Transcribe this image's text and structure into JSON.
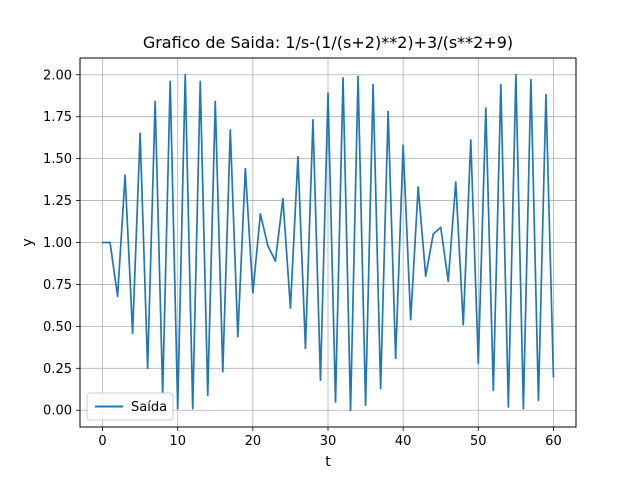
{
  "chart_data": {
    "type": "line",
    "title": "Grafico de Saida: 1/s-(1/(s+2)**2)+3/(s**2+9)",
    "xlabel": "t",
    "ylabel": "y",
    "xlim": [
      -3,
      63
    ],
    "ylim": [
      -0.1,
      2.1
    ],
    "xticks": [
      0,
      10,
      20,
      30,
      40,
      50,
      60
    ],
    "yticks": [
      0.0,
      0.25,
      0.5,
      0.75,
      1.0,
      1.25,
      1.5,
      1.75,
      2.0
    ],
    "xtick_labels": [
      "0",
      "10",
      "20",
      "30",
      "40",
      "50",
      "60"
    ],
    "ytick_labels": [
      "0.00",
      "0.25",
      "0.50",
      "0.75",
      "1.00",
      "1.25",
      "1.50",
      "1.75",
      "2.00"
    ],
    "grid": true,
    "legend_position": "lower-left",
    "series": [
      {
        "name": "Saída",
        "color": "#1f77b4",
        "x": [
          0,
          1,
          2,
          3,
          4,
          5,
          6,
          7,
          8,
          9,
          10,
          11,
          12,
          13,
          14,
          15,
          16,
          17,
          18,
          19,
          20,
          21,
          22,
          23,
          24,
          25,
          26,
          27,
          28,
          29,
          30,
          31,
          32,
          33,
          34,
          35,
          36,
          37,
          38,
          39,
          40,
          41,
          42,
          43,
          44,
          45,
          46,
          47,
          48,
          49,
          50,
          51,
          52,
          53,
          54,
          55,
          56,
          57,
          58,
          59,
          60
        ],
        "y": [
          1.0,
          1.0,
          0.68,
          1.4,
          0.46,
          1.65,
          0.25,
          1.84,
          0.1,
          1.96,
          0.01,
          2.0,
          0.01,
          1.96,
          0.09,
          1.84,
          0.23,
          1.67,
          0.44,
          1.44,
          0.7,
          1.17,
          0.98,
          0.89,
          1.26,
          0.61,
          1.51,
          0.37,
          1.73,
          0.18,
          1.89,
          0.05,
          1.98,
          0.0,
          1.99,
          0.03,
          1.94,
          0.13,
          1.78,
          0.31,
          1.58,
          0.54,
          1.33,
          0.8,
          1.05,
          1.09,
          0.77,
          1.36,
          0.51,
          1.61,
          0.28,
          1.8,
          0.12,
          1.94,
          0.02,
          2.0,
          0.01,
          1.97,
          0.06,
          1.88,
          0.2
        ]
      }
    ]
  }
}
